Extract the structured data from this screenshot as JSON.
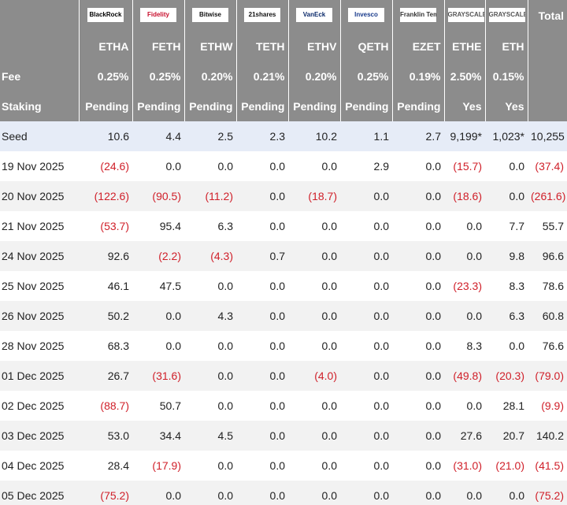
{
  "header": {
    "issuers": [
      "BlackRock",
      "Fidelity",
      "Bitwise",
      "21shares",
      "VanEck",
      "Invesco",
      "Franklin Templeton",
      "GRAYSCALE",
      "GRAYSCALE"
    ],
    "tickers": [
      "ETHA",
      "FETH",
      "ETHW",
      "TETH",
      "ETHV",
      "QETH",
      "EZET",
      "ETHE",
      "ETH"
    ],
    "total": "Total"
  },
  "fee": {
    "label": "Fee",
    "values": [
      "0.25%",
      "0.25%",
      "0.20%",
      "0.21%",
      "0.20%",
      "0.25%",
      "0.19%",
      "2.50%",
      "0.15%"
    ]
  },
  "staking": {
    "label": "Staking",
    "values": [
      "Pending",
      "Pending",
      "Pending",
      "Pending",
      "Pending",
      "Pending",
      "Pending",
      "Yes",
      "Yes"
    ]
  },
  "rows": [
    {
      "label": "Seed",
      "cells": [
        "10.6",
        "4.4",
        "2.5",
        "2.3",
        "10.2",
        "1.1",
        "2.7",
        "9,199*",
        "1,023*",
        "10,255"
      ]
    },
    {
      "label": "19 Nov 2025",
      "cells": [
        "(24.6)",
        "0.0",
        "0.0",
        "0.0",
        "0.0",
        "2.9",
        "0.0",
        "(15.7)",
        "0.0",
        "(37.4)"
      ]
    },
    {
      "label": "20 Nov 2025",
      "cells": [
        "(122.6)",
        "(90.5)",
        "(11.2)",
        "0.0",
        "(18.7)",
        "0.0",
        "0.0",
        "(18.6)",
        "0.0",
        "(261.6)"
      ]
    },
    {
      "label": "21 Nov 2025",
      "cells": [
        "(53.7)",
        "95.4",
        "6.3",
        "0.0",
        "0.0",
        "0.0",
        "0.0",
        "0.0",
        "7.7",
        "55.7"
      ]
    },
    {
      "label": "24 Nov 2025",
      "cells": [
        "92.6",
        "(2.2)",
        "(4.3)",
        "0.7",
        "0.0",
        "0.0",
        "0.0",
        "0.0",
        "9.8",
        "96.6"
      ]
    },
    {
      "label": "25 Nov 2025",
      "cells": [
        "46.1",
        "47.5",
        "0.0",
        "0.0",
        "0.0",
        "0.0",
        "0.0",
        "(23.3)",
        "8.3",
        "78.6"
      ]
    },
    {
      "label": "26 Nov 2025",
      "cells": [
        "50.2",
        "0.0",
        "4.3",
        "0.0",
        "0.0",
        "0.0",
        "0.0",
        "0.0",
        "6.3",
        "60.8"
      ]
    },
    {
      "label": "28 Nov 2025",
      "cells": [
        "68.3",
        "0.0",
        "0.0",
        "0.0",
        "0.0",
        "0.0",
        "0.0",
        "8.3",
        "0.0",
        "76.6"
      ]
    },
    {
      "label": "01 Dec 2025",
      "cells": [
        "26.7",
        "(31.6)",
        "0.0",
        "0.0",
        "(4.0)",
        "0.0",
        "0.0",
        "(49.8)",
        "(20.3)",
        "(79.0)"
      ]
    },
    {
      "label": "02 Dec 2025",
      "cells": [
        "(88.7)",
        "50.7",
        "0.0",
        "0.0",
        "0.0",
        "0.0",
        "0.0",
        "0.0",
        "28.1",
        "(9.9)"
      ]
    },
    {
      "label": "03 Dec 2025",
      "cells": [
        "53.0",
        "34.4",
        "4.5",
        "0.0",
        "0.0",
        "0.0",
        "0.0",
        "27.6",
        "20.7",
        "140.2"
      ]
    },
    {
      "label": "04 Dec 2025",
      "cells": [
        "28.4",
        "(17.9)",
        "0.0",
        "0.0",
        "0.0",
        "0.0",
        "0.0",
        "(31.0)",
        "(21.0)",
        "(41.5)"
      ]
    },
    {
      "label": "05 Dec 2025",
      "cells": [
        "(75.2)",
        "0.0",
        "0.0",
        "0.0",
        "0.0",
        "0.0",
        "0.0",
        "0.0",
        "0.0",
        "(75.2)"
      ]
    }
  ]
}
